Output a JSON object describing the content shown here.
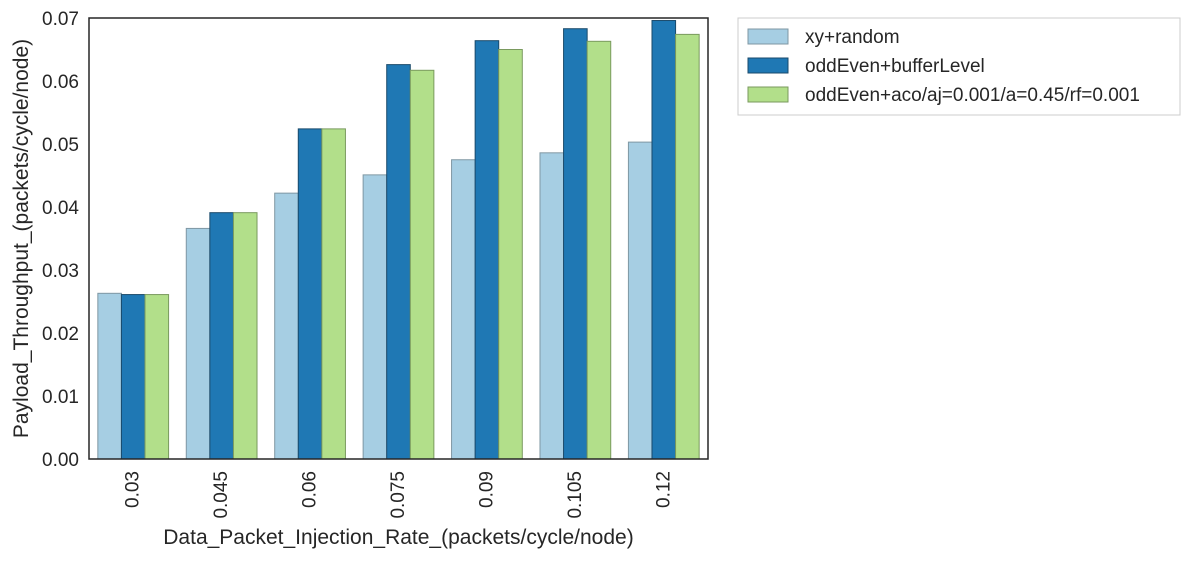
{
  "chart_data": {
    "type": "bar",
    "title": "",
    "xlabel": "Data_Packet_Injection_Rate_(packets/cycle/node)",
    "ylabel": "Payload_Throughput_(packets/cycle/node)",
    "ylim": [
      0,
      0.07
    ],
    "yticks": [
      "0.00",
      "0.01",
      "0.02",
      "0.03",
      "0.04",
      "0.05",
      "0.06",
      "0.07"
    ],
    "categories": [
      "0.03",
      "0.045",
      "0.06",
      "0.075",
      "0.09",
      "0.105",
      "0.12"
    ],
    "grid": false,
    "legend_position": "outside-top-right",
    "series": [
      {
        "name": "xy+random",
        "color": "#a6cee3",
        "values": [
          0.0263,
          0.0366,
          0.0422,
          0.0451,
          0.0475,
          0.0486,
          0.0503
        ]
      },
      {
        "name": "oddEven+bufferLevel",
        "color": "#1f78b4",
        "values": [
          0.0261,
          0.0391,
          0.0524,
          0.0626,
          0.0664,
          0.0683,
          0.0696
        ]
      },
      {
        "name": "oddEven+aco/aj=0.001/a=0.45/rf=0.001",
        "color": "#b2df8a",
        "values": [
          0.0261,
          0.0391,
          0.0524,
          0.0617,
          0.065,
          0.0663,
          0.0674
        ]
      }
    ]
  }
}
